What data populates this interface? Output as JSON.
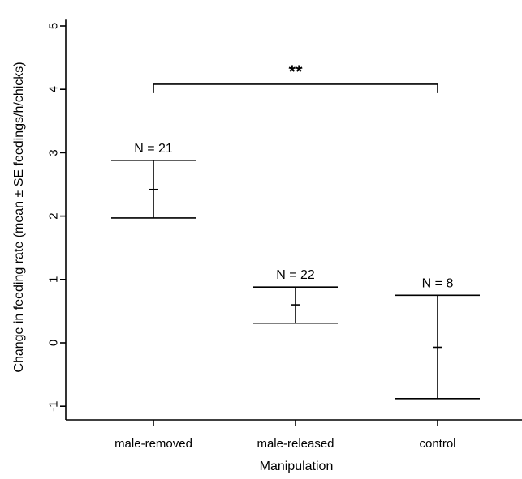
{
  "chart_data": {
    "type": "errorbar",
    "title": "",
    "xlabel": "Manipulation",
    "ylabel": "Change in feeding rate (mean ± SE feedings/h/chicks)",
    "categories": [
      "male-removed",
      "male-released",
      "control"
    ],
    "series": [
      {
        "mean": [
          2.42,
          0.6,
          -0.07
        ],
        "upper": [
          2.88,
          0.88,
          0.75
        ],
        "lower": [
          1.97,
          0.31,
          -0.88
        ]
      }
    ],
    "sample_sizes": [
      "N =  21",
      "N =  22",
      "N =  8"
    ],
    "ylim": [
      -1.2,
      5.15
    ],
    "yticks": [
      -1,
      0,
      1,
      2,
      3,
      4,
      5
    ],
    "ytick_labels": [
      "-1",
      "0",
      "1",
      "2",
      "3",
      "4",
      "5"
    ],
    "grid": false,
    "legend": "none",
    "significance": {
      "label": "**",
      "between": [
        "male-removed",
        "control"
      ],
      "y": 4.08,
      "drop": 0.14
    }
  }
}
